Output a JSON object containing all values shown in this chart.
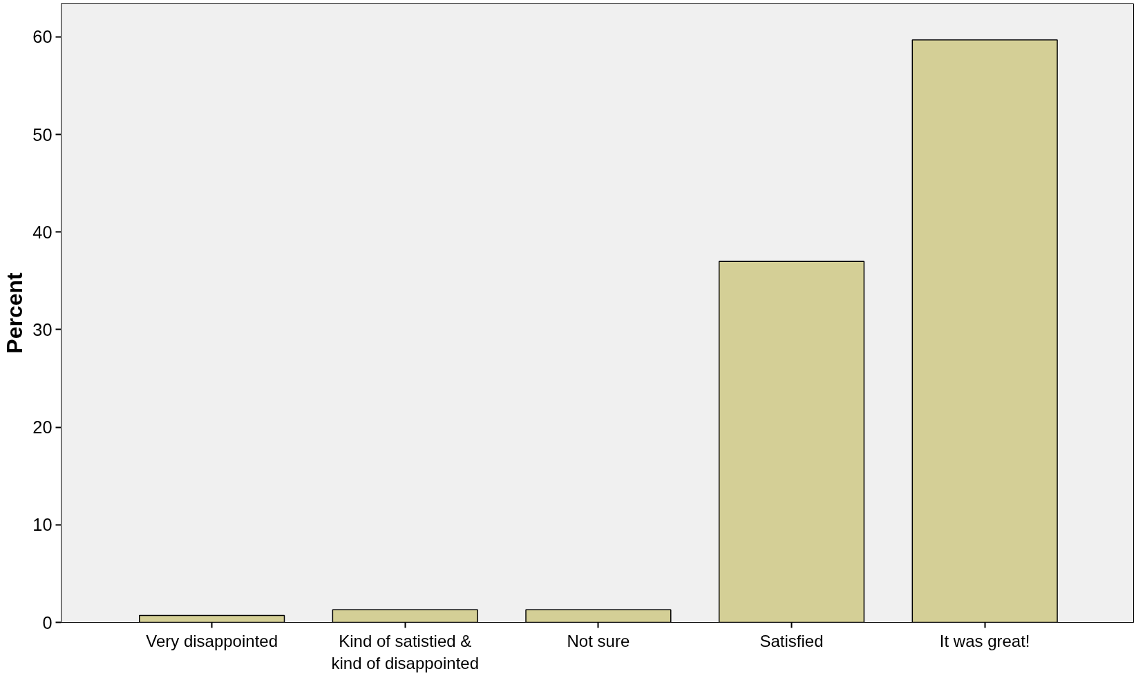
{
  "chart_data": {
    "type": "bar",
    "ylabel": "Percent",
    "categories": [
      "Very disappointed",
      "Kind of satistied & kind of disappointed",
      "Not sure",
      "Satisfied",
      "It was great!"
    ],
    "values": [
      0.7,
      1.3,
      1.3,
      37.0,
      59.7
    ],
    "color": "#d4cf96",
    "ylim": [
      0,
      63.4
    ],
    "yticks": [
      0,
      10,
      20,
      30,
      40,
      50,
      60
    ],
    "grid": false
  }
}
